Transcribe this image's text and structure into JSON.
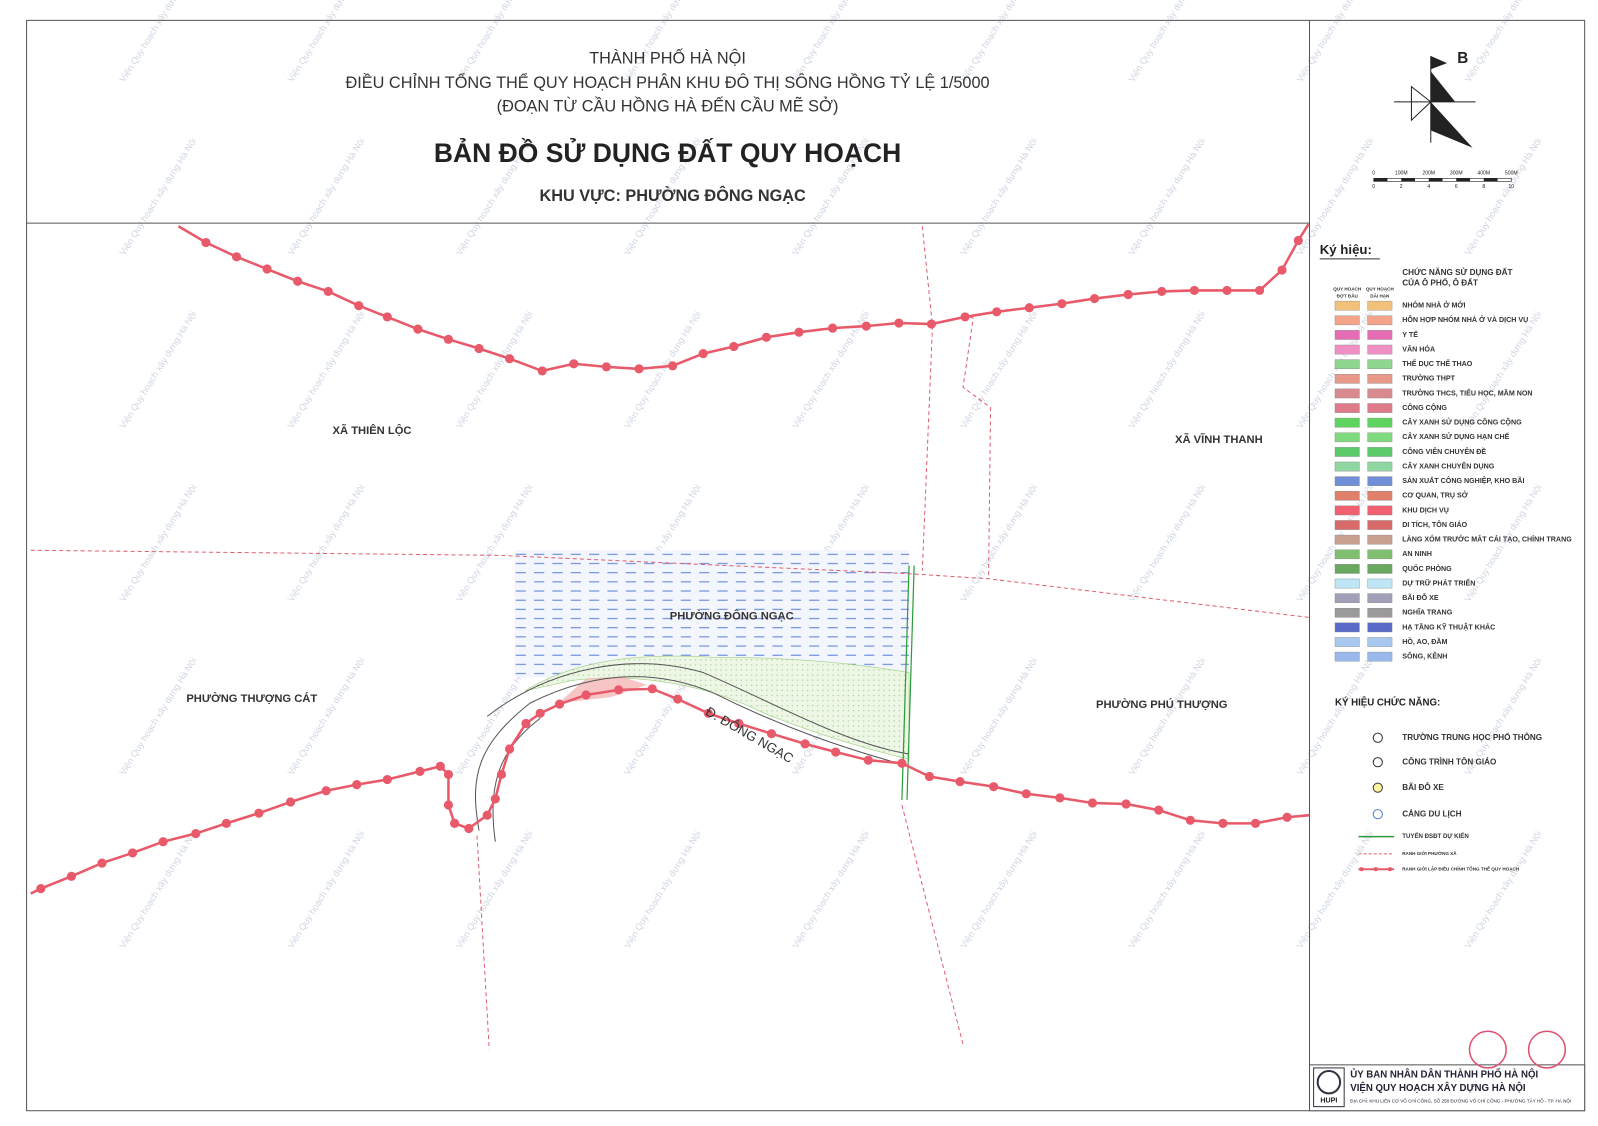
{
  "header": {
    "city": "THÀNH PHỐ HÀ NỘI",
    "project": "ĐIỀU CHỈNH TỔNG THỂ QUY HOẠCH PHÂN KHU ĐÔ THỊ SÔNG HỒNG TỶ LỆ 1/5000",
    "segment": "(ĐOẠN TỪ CẦU HỒNG HÀ ĐẾN CẦU MẼ SỞ)",
    "title": "BẢN ĐỒ SỬ DỤNG ĐẤT QUY HOẠCH",
    "area": "KHU VỰC:  PHƯỜNG ĐÔNG NGẠC"
  },
  "compass": {
    "north": "B"
  },
  "scale": {
    "meters": [
      "0",
      "100M",
      "200M",
      "300M",
      "400M",
      "500M"
    ],
    "units": [
      "0",
      "2",
      "4",
      "6",
      "8",
      "10"
    ]
  },
  "map_labels": [
    "XÃ THIÊN LỘC",
    "XÃ VĨNH THANH",
    "PHƯỜNG ĐÔNG NGẠC",
    "PHƯỜNG THƯỢNG CÁT",
    "PHƯỜNG PHÚ THƯỢNG",
    "Đ. ĐÔNG NGẠC"
  ],
  "legend": {
    "title": "Ký hiệu:",
    "subtitle": [
      "CHỨC NĂNG SỬ DỤNG ĐẤT",
      "CỦA Ô PHỐ, Ô ĐẤT"
    ],
    "col_headers": [
      [
        "QUY HOẠCH",
        "ĐỢT ĐẦU"
      ],
      [
        "QUY HOẠCH",
        "DÀI HẠN"
      ]
    ],
    "land_use": [
      {
        "label": "NHÓM NHÀ Ở MỚI",
        "color": "#f2c27a"
      },
      {
        "label": "HỖN HỢP NHÓM NHÀ Ở VÀ DỊCH VỤ",
        "color": "#f5a48c"
      },
      {
        "label": "Y TẾ",
        "color": "#e66cb4"
      },
      {
        "label": "VĂN HÓA",
        "color": "#f08fc4"
      },
      {
        "label": "THỂ DỤC THỂ THAO",
        "color": "#8fd68f"
      },
      {
        "label": "TRƯỜNG THPT",
        "color": "#e8998a"
      },
      {
        "label": "TRƯỜNG THCS, TIỂU HỌC, MẦM NON",
        "color": "#d98a8e"
      },
      {
        "label": "CÔNG CỘNG",
        "color": "#de7a8a"
      },
      {
        "label": "CÂY XANH SỬ DỤNG CÔNG CỘNG",
        "color": "#5fd35f"
      },
      {
        "label": "CÂY XANH SỬ DỤNG HẠN CHẾ",
        "color": "#7edb7e"
      },
      {
        "label": "CÔNG VIÊN CHUYÊN ĐỀ",
        "color": "#5cc96b"
      },
      {
        "label": "CÂY XANH CHUYÊN DỤNG",
        "color": "#8fd6a0"
      },
      {
        "label": "SẢN XUẤT CÔNG NGHIỆP, KHO BÃI",
        "color": "#6f8fd6"
      },
      {
        "label": "CƠ QUAN, TRỤ SỞ",
        "color": "#e0806a"
      },
      {
        "label": "KHU DỊCH VỤ",
        "color": "#f06070"
      },
      {
        "label": "DI TÍCH, TÔN GIÁO",
        "color": "#d86a6a"
      },
      {
        "label": "LÀNG XÓM TRƯỚC MẮT CẢI TẠO, CHỈNH TRANG",
        "color": "#c8a090"
      },
      {
        "label": "AN NINH",
        "color": "#7fbf6f"
      },
      {
        "label": "QUỐC PHÒNG",
        "color": "#6aa860"
      },
      {
        "label": "DỰ TRỮ PHÁT TRIỂN",
        "color": "#bfe6f6"
      },
      {
        "label": "BÃI ĐỖ XE",
        "color": "#a0a0b8"
      },
      {
        "label": "NGHĨA TRANG",
        "color": "#9a9a9a"
      },
      {
        "label": "HẠ TẦNG KỸ THUẬT KHÁC",
        "color": "#5a6ac8"
      },
      {
        "label": "HỒ, AO, ĐẦM",
        "color": "#a8c8f0"
      },
      {
        "label": "SÔNG, KÊNH",
        "color": "#9ab8ec"
      }
    ],
    "function_title": "KÝ HIỆU CHỨC NĂNG:",
    "functions": [
      "TRƯỜNG TRUNG HỌC PHỔ THÔNG",
      "CÔNG TRÌNH TÔN GIÁO",
      "BÃI ĐỖ XE",
      "CẢNG DU LỊCH"
    ],
    "lines": [
      "TUYẾN ĐSĐT DỰ KIẾN",
      "RANH GIỚI PHƯỜNG XÃ",
      "RANH GIỚI LẬP ĐIỀU CHỈNH TỔNG THỂ QUY HOẠCH"
    ]
  },
  "footer": {
    "org": "ỦY BAN NHÂN DÂN THÀNH PHỐ HÀ NỘI",
    "institute": "VIỆN QUY HOẠCH XÂY DỰNG HÀ NỘI",
    "address": "ĐỊA CHỈ: KHU LIÊN CƠ VÕ CHÍ CÔNG, SỐ 258 ĐƯỜNG VÕ CHÍ CÔNG - PHƯỜNG TÂY HỒ - TP. HÀ NỘI",
    "logo": "HUPI"
  },
  "watermark": "Viện Quy hoạch xây dựng Hà Nội"
}
